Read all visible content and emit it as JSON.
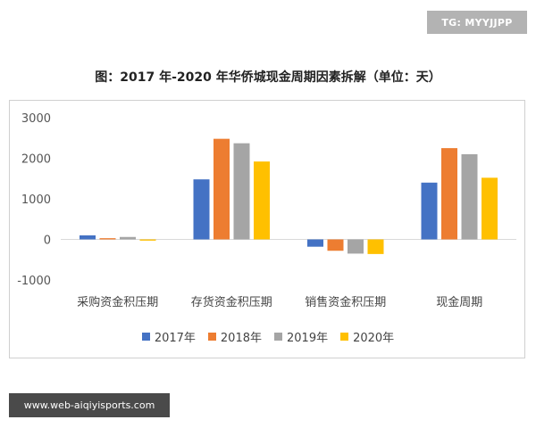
{
  "badges": {
    "tg": "TG: MYYJJPP",
    "url": "www.web-aiqiyisports.com"
  },
  "chart_data": {
    "type": "bar",
    "title": "图：2017 年-2020 年华侨城现金周期因素拆解（单位：天）",
    "categories": [
      "采购资金积压期",
      "存货资金积压期",
      "销售资金积压期",
      "现金周期"
    ],
    "ylim": [
      -1000,
      3000
    ],
    "yticks": [
      -1000,
      0,
      1000,
      2000,
      3000
    ],
    "grid": false,
    "legend_position": "bottom",
    "series": [
      {
        "name": "2017年",
        "color": "#4472C4",
        "values": [
          100,
          1480,
          -180,
          1400
        ]
      },
      {
        "name": "2018年",
        "color": "#ED7D31",
        "values": [
          30,
          2480,
          -280,
          2250
        ]
      },
      {
        "name": "2019年",
        "color": "#A5A5A5",
        "values": [
          60,
          2370,
          -350,
          2100
        ]
      },
      {
        "name": "2020年",
        "color": "#FFC000",
        "values": [
          -30,
          1920,
          -360,
          1520
        ]
      }
    ]
  }
}
